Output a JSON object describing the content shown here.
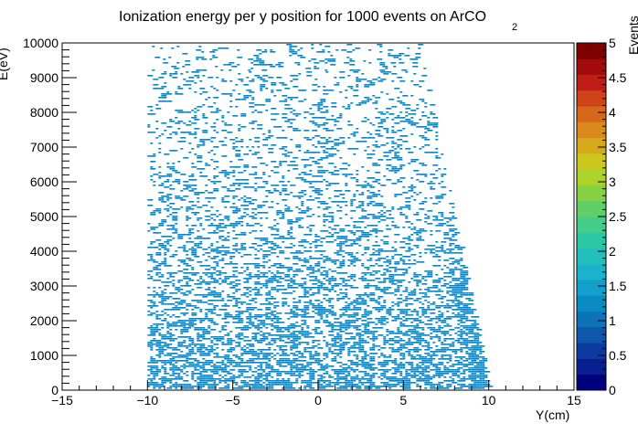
{
  "chart_data": {
    "type": "heatmap",
    "title_main": "Ionization energy per y position for 1000 events on ArCO",
    "title_sub": "2",
    "xlabel": "Y(cm)",
    "ylabel": "E(eV)",
    "zlabel": "Events",
    "xlim": [
      -15,
      15
    ],
    "ylim": [
      0,
      10000
    ],
    "zlim": [
      0,
      5
    ],
    "x_ticks": [
      "−15",
      "−10",
      "−5",
      "0",
      "5",
      "10",
      "15"
    ],
    "x_tick_values": [
      -15,
      -10,
      -5,
      0,
      5,
      10,
      15
    ],
    "y_ticks": [
      "0",
      "1000",
      "2000",
      "3000",
      "4000",
      "5000",
      "6000",
      "7000",
      "8000",
      "9000",
      "10000"
    ],
    "y_tick_values": [
      0,
      1000,
      2000,
      3000,
      4000,
      5000,
      6000,
      7000,
      8000,
      9000,
      10000
    ],
    "z_ticks": [
      "0",
      "0.5",
      "1",
      "1.5",
      "2",
      "2.5",
      "3",
      "3.5",
      "4",
      "4.5",
      "5"
    ],
    "z_tick_values": [
      0,
      0.5,
      1,
      1.5,
      2,
      2.5,
      3,
      3.5,
      4,
      4.5,
      5
    ],
    "populated_region": {
      "y_min": -10,
      "y_max": 10,
      "e_min": 0,
      "e_max": 10000
    },
    "dominant_cell_value": 1,
    "palette": [
      "#00007f",
      "#0a1f8f",
      "#0d3a9e",
      "#0e57ac",
      "#0e72b9",
      "#0a8bc4",
      "#139fcc",
      "#1cb2cb",
      "#22bfbd",
      "#2cc8a5",
      "#42cd88",
      "#5fcf66",
      "#86d143",
      "#acd32a",
      "#ccc71d",
      "#d6a91b",
      "#d98a1a",
      "#d66919",
      "#cf4318",
      "#c01d16",
      "#a10b0b",
      "#7f0000"
    ],
    "cell_color": "#1580b7"
  }
}
